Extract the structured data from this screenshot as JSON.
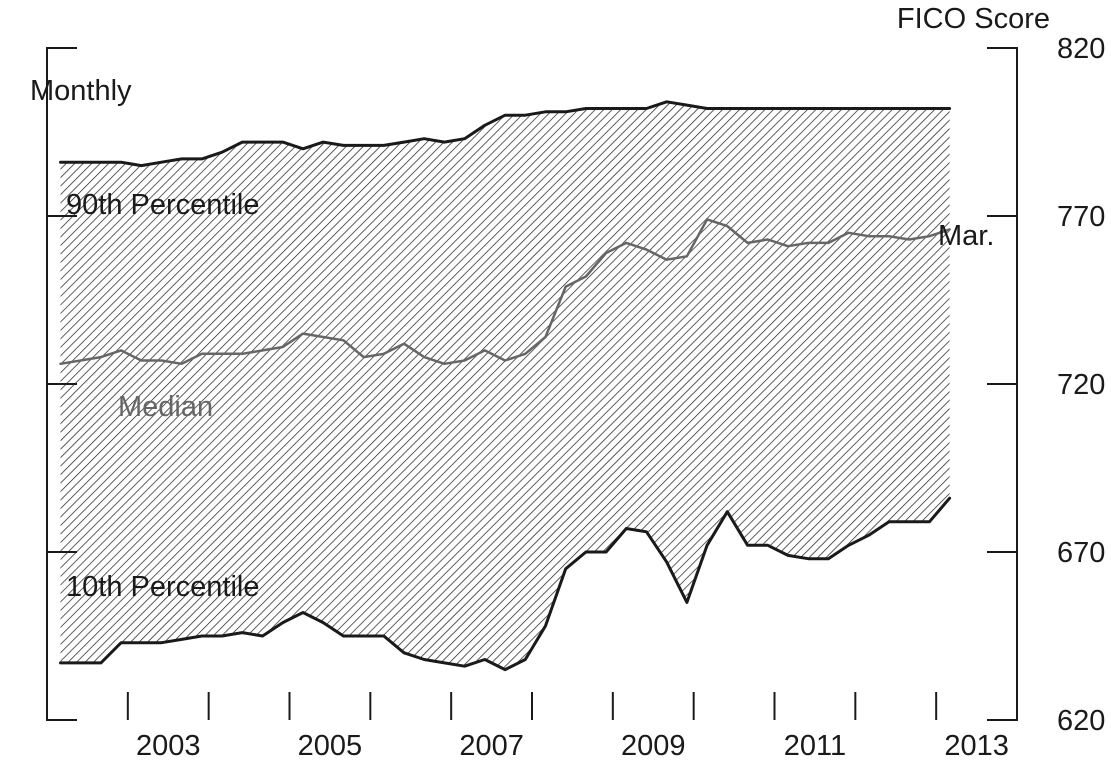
{
  "chart_data": {
    "type": "area",
    "frequency_label": "Monthly",
    "y_axis_title": "FICO Score",
    "ylim": [
      620,
      820
    ],
    "y_ticks": [
      620,
      670,
      720,
      770,
      820
    ],
    "x_tick_labels": [
      "2003",
      "2005",
      "2007",
      "2009",
      "2011",
      "2013"
    ],
    "x_range": [
      "2002-01",
      "2013-12"
    ],
    "last_observation_label": "Mar.",
    "series": [
      {
        "name": "90th Percentile",
        "role": "upper_bound",
        "color": "#1a1a1a",
        "points": [
          [
            "2002-03",
            786
          ],
          [
            "2002-09",
            786
          ],
          [
            "2002-12",
            786
          ],
          [
            "2003-03",
            785
          ],
          [
            "2003-06",
            786
          ],
          [
            "2003-09",
            787
          ],
          [
            "2003-12",
            787
          ],
          [
            "2004-03",
            789
          ],
          [
            "2004-06",
            792
          ],
          [
            "2004-09",
            792
          ],
          [
            "2004-12",
            792
          ],
          [
            "2005-03",
            790
          ],
          [
            "2005-06",
            792
          ],
          [
            "2005-09",
            791
          ],
          [
            "2005-12",
            791
          ],
          [
            "2006-03",
            791
          ],
          [
            "2006-06",
            792
          ],
          [
            "2006-09",
            793
          ],
          [
            "2006-12",
            792
          ],
          [
            "2007-03",
            793
          ],
          [
            "2007-06",
            797
          ],
          [
            "2007-09",
            800
          ],
          [
            "2007-12",
            800
          ],
          [
            "2008-03",
            801
          ],
          [
            "2008-06",
            801
          ],
          [
            "2008-09",
            802
          ],
          [
            "2008-12",
            802
          ],
          [
            "2009-03",
            802
          ],
          [
            "2009-06",
            802
          ],
          [
            "2009-09",
            804
          ],
          [
            "2009-12",
            803
          ],
          [
            "2010-03",
            802
          ],
          [
            "2010-06",
            802
          ],
          [
            "2010-09",
            802
          ],
          [
            "2010-12",
            802
          ],
          [
            "2011-03",
            802
          ],
          [
            "2011-06",
            802
          ],
          [
            "2011-09",
            802
          ],
          [
            "2011-12",
            802
          ],
          [
            "2012-03",
            802
          ],
          [
            "2012-06",
            802
          ],
          [
            "2012-09",
            802
          ],
          [
            "2012-12",
            802
          ],
          [
            "2013-03",
            802
          ]
        ]
      },
      {
        "name": "Median",
        "role": "line",
        "color": "#666666",
        "points": [
          [
            "2002-03",
            726
          ],
          [
            "2002-09",
            728
          ],
          [
            "2002-12",
            730
          ],
          [
            "2003-03",
            727
          ],
          [
            "2003-06",
            727
          ],
          [
            "2003-09",
            726
          ],
          [
            "2003-12",
            729
          ],
          [
            "2004-03",
            729
          ],
          [
            "2004-06",
            729
          ],
          [
            "2004-09",
            730
          ],
          [
            "2004-12",
            731
          ],
          [
            "2005-03",
            735
          ],
          [
            "2005-06",
            734
          ],
          [
            "2005-09",
            733
          ],
          [
            "2005-12",
            728
          ],
          [
            "2006-03",
            729
          ],
          [
            "2006-06",
            732
          ],
          [
            "2006-09",
            728
          ],
          [
            "2006-12",
            726
          ],
          [
            "2007-03",
            727
          ],
          [
            "2007-06",
            730
          ],
          [
            "2007-09",
            727
          ],
          [
            "2007-12",
            729
          ],
          [
            "2008-03",
            734
          ],
          [
            "2008-06",
            749
          ],
          [
            "2008-09",
            752
          ],
          [
            "2008-12",
            759
          ],
          [
            "2009-03",
            762
          ],
          [
            "2009-06",
            760
          ],
          [
            "2009-09",
            757
          ],
          [
            "2009-12",
            758
          ],
          [
            "2010-03",
            769
          ],
          [
            "2010-06",
            767
          ],
          [
            "2010-09",
            762
          ],
          [
            "2010-12",
            763
          ],
          [
            "2011-03",
            761
          ],
          [
            "2011-06",
            762
          ],
          [
            "2011-09",
            762
          ],
          [
            "2011-12",
            765
          ],
          [
            "2012-03",
            764
          ],
          [
            "2012-06",
            764
          ],
          [
            "2012-09",
            763
          ],
          [
            "2012-12",
            764
          ],
          [
            "2013-03",
            766
          ]
        ]
      },
      {
        "name": "10th Percentile",
        "role": "lower_bound",
        "color": "#1a1a1a",
        "points": [
          [
            "2002-03",
            637
          ],
          [
            "2002-09",
            637
          ],
          [
            "2002-12",
            643
          ],
          [
            "2003-03",
            643
          ],
          [
            "2003-06",
            643
          ],
          [
            "2003-09",
            644
          ],
          [
            "2003-12",
            645
          ],
          [
            "2004-03",
            645
          ],
          [
            "2004-06",
            646
          ],
          [
            "2004-09",
            645
          ],
          [
            "2004-12",
            649
          ],
          [
            "2005-03",
            652
          ],
          [
            "2005-06",
            649
          ],
          [
            "2005-09",
            645
          ],
          [
            "2005-12",
            645
          ],
          [
            "2006-03",
            645
          ],
          [
            "2006-06",
            640
          ],
          [
            "2006-09",
            638
          ],
          [
            "2006-12",
            637
          ],
          [
            "2007-03",
            636
          ],
          [
            "2007-06",
            638
          ],
          [
            "2007-09",
            635
          ],
          [
            "2007-12",
            638
          ],
          [
            "2008-03",
            648
          ],
          [
            "2008-06",
            665
          ],
          [
            "2008-09",
            670
          ],
          [
            "2008-12",
            670
          ],
          [
            "2009-03",
            677
          ],
          [
            "2009-06",
            676
          ],
          [
            "2009-09",
            667
          ],
          [
            "2009-12",
            655
          ],
          [
            "2010-03",
            672
          ],
          [
            "2010-06",
            682
          ],
          [
            "2010-09",
            672
          ],
          [
            "2010-12",
            672
          ],
          [
            "2011-03",
            669
          ],
          [
            "2011-06",
            668
          ],
          [
            "2011-09",
            668
          ],
          [
            "2011-12",
            672
          ],
          [
            "2012-03",
            675
          ],
          [
            "2012-06",
            679
          ],
          [
            "2012-09",
            679
          ],
          [
            "2012-12",
            679
          ],
          [
            "2013-03",
            686
          ]
        ]
      }
    ]
  }
}
